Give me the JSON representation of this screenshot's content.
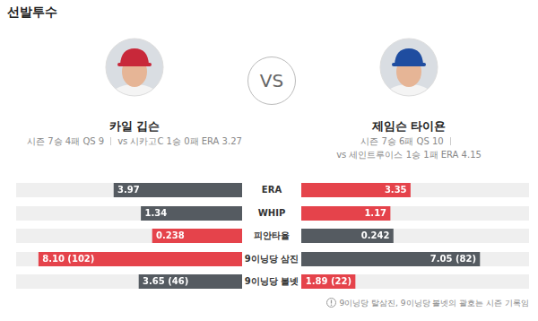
{
  "title": "선발투수",
  "vs": "VS",
  "pitchers": [
    {
      "name": "카일 깁슨",
      "season": "시즌 7승 4패 QS 9",
      "vs_record": "vs 시카고C 1승 0패 ERA 3.27"
    },
    {
      "name": "제임슨 타이욘",
      "season": "시즌 7승 6패 QS 10",
      "vs_record": "vs 세인트루이스 1승 1패 ERA 4.15"
    }
  ],
  "chart_data": [
    {
      "type": "bar",
      "orientation": "horizontal",
      "title": "ERA",
      "xlim": [
        0,
        7
      ],
      "tick_labels": false,
      "grid": false,
      "data_labels": true,
      "values": [
        3.97,
        3.35
      ],
      "value_labels": [
        "3.97",
        "3.35"
      ],
      "colors": [
        "#555b61",
        "#e5434b"
      ]
    },
    {
      "type": "bar",
      "orientation": "horizontal",
      "title": "WHIP",
      "xlim": [
        0,
        3
      ],
      "tick_labels": false,
      "grid": false,
      "data_labels": true,
      "values": [
        1.34,
        1.17
      ],
      "value_labels": [
        "1.34",
        "1.17"
      ],
      "colors": [
        "#555b61",
        "#e5434b"
      ]
    },
    {
      "type": "bar",
      "orientation": "horizontal",
      "title": "피안타율",
      "xlim": [
        0,
        0.6
      ],
      "tick_labels": false,
      "grid": false,
      "data_labels": true,
      "values": [
        0.238,
        0.242
      ],
      "value_labels": [
        "0.238",
        "0.242"
      ],
      "colors": [
        "#e5434b",
        "#555b61"
      ]
    },
    {
      "type": "bar",
      "orientation": "horizontal",
      "title": "9이닝당 삼진",
      "xlim": [
        0,
        9
      ],
      "tick_labels": false,
      "grid": false,
      "data_labels": true,
      "values": [
        8.1,
        7.05
      ],
      "value_labels": [
        "8.10 (102)",
        "7.05 (82)"
      ],
      "colors": [
        "#e5434b",
        "#555b61"
      ]
    },
    {
      "type": "bar",
      "orientation": "horizontal",
      "title": "9이닝당 볼넷",
      "xlim": [
        0,
        8
      ],
      "tick_labels": false,
      "grid": false,
      "data_labels": true,
      "values": [
        3.65,
        1.89
      ],
      "value_labels": [
        "3.65 (46)",
        "1.89 (22)"
      ],
      "colors": [
        "#555b61",
        "#e5434b"
      ]
    }
  ],
  "footnote": "9이닝당 탈삼진, 9이닝당 볼넷의 괄호는 시즌 기록임"
}
